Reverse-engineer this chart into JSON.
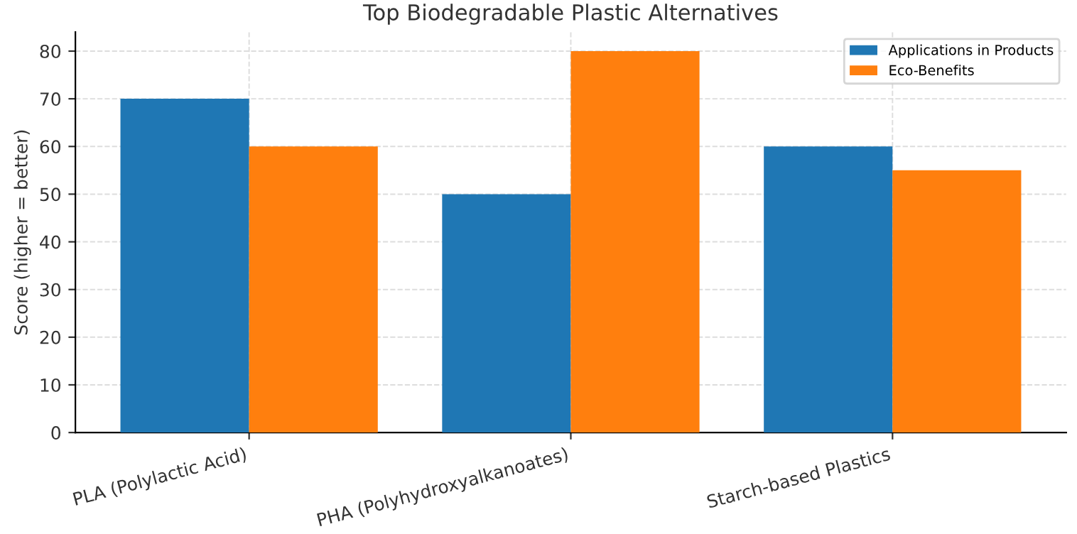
{
  "chart_data": {
    "type": "bar",
    "title": "Top Biodegradable Plastic Alternatives",
    "ylabel": "Score (higher = better)",
    "categories": [
      "PLA (Polylactic Acid)",
      "PHA (Polyhydroxyalkanoates)",
      "Starch-based Plastics"
    ],
    "series": [
      {
        "name": "Applications in Products",
        "color": "#1f77b4",
        "values": [
          70,
          50,
          60
        ]
      },
      {
        "name": "Eco-Benefits",
        "color": "#ff7f0e",
        "values": [
          60,
          80,
          55
        ]
      }
    ],
    "ylim": [
      0,
      84
    ],
    "yticks": [
      0,
      10,
      20,
      30,
      40,
      50,
      60,
      70,
      80
    ],
    "grid": true,
    "legend": "top right"
  }
}
